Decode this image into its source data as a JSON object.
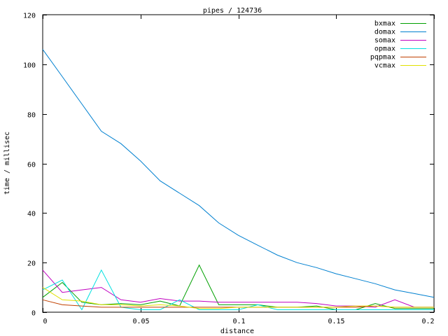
{
  "chart_data": {
    "type": "line",
    "title": "pipes / 124736",
    "xlabel": "distance",
    "ylabel": "time / millisec",
    "xlim": [
      0,
      0.2
    ],
    "ylim": [
      0,
      120
    ],
    "xticks": [
      0,
      0.05,
      0.1,
      0.15,
      0.2
    ],
    "xtick_labels": [
      "0",
      "0.05",
      "0.1",
      "0.15",
      "0.2"
    ],
    "yticks": [
      0,
      20,
      40,
      60,
      80,
      100,
      120
    ],
    "ytick_labels": [
      "0",
      "20",
      "40",
      "60",
      "80",
      "100",
      "120"
    ],
    "grid": false,
    "legend_position": "top-right",
    "x": [
      0,
      0.01,
      0.02,
      0.03,
      0.04,
      0.05,
      0.06,
      0.07,
      0.08,
      0.09,
      0.1,
      0.11,
      0.12,
      0.13,
      0.14,
      0.15,
      0.16,
      0.17,
      0.18,
      0.19,
      0.2
    ],
    "series": [
      {
        "name": "bxmax",
        "color": "#00a000",
        "values": [
          6,
          12,
          4,
          3,
          3.5,
          3,
          4.5,
          2.5,
          19,
          3,
          3,
          3,
          2,
          2,
          2.5,
          1,
          1,
          3.5,
          1.5,
          1.5,
          1.5
        ]
      },
      {
        "name": "domax",
        "color": "#0080d0",
        "values": [
          106,
          95,
          84,
          73,
          68,
          61,
          53,
          48,
          43,
          36,
          31,
          27,
          23,
          20,
          18,
          15.5,
          13.5,
          11.5,
          9,
          7.5,
          6
        ]
      },
      {
        "name": "somax",
        "color": "#c000c0",
        "values": [
          17,
          8,
          9,
          10,
          5,
          4,
          5.5,
          4.5,
          4.5,
          4,
          4,
          4,
          4,
          4,
          3.5,
          2.5,
          2.5,
          2,
          5,
          2,
          2
        ]
      },
      {
        "name": "opmax",
        "color": "#00e0e0",
        "values": [
          9,
          13,
          1,
          17,
          2,
          1,
          1,
          5,
          1,
          1,
          1,
          3,
          1,
          1,
          1,
          1,
          1,
          1,
          1,
          1,
          1
        ]
      },
      {
        "name": "pqpmax",
        "color": "#c04000",
        "values": [
          5,
          3,
          2.5,
          2,
          2,
          2,
          2,
          2,
          2,
          2,
          2,
          2,
          2,
          2,
          2,
          2,
          2,
          2.5,
          2,
          2,
          2
        ]
      },
      {
        "name": "vcmax",
        "color": "#e0e000",
        "values": [
          10,
          5,
          4.5,
          3,
          3,
          2.5,
          3,
          2.5,
          1.5,
          1.5,
          2,
          2,
          2,
          2,
          2,
          2,
          2.5,
          2.5,
          2,
          2,
          2
        ]
      }
    ]
  }
}
